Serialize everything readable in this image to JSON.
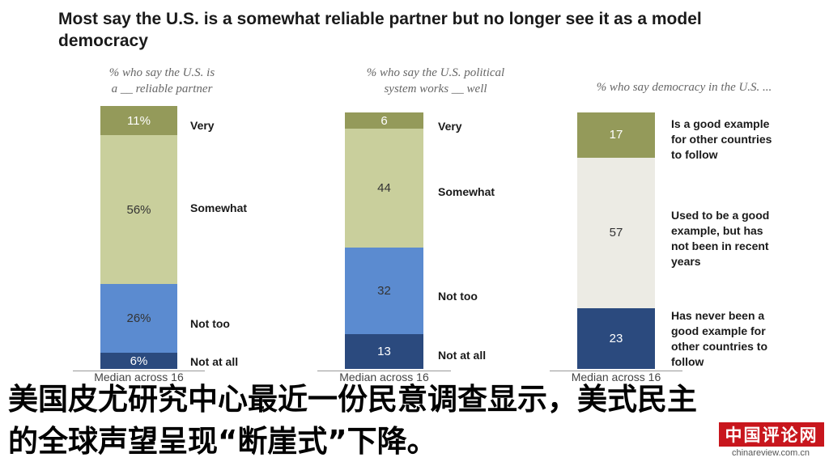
{
  "title": "Most say the U.S. is a somewhat reliable partner but no longer see it as a model democracy",
  "chart_data": [
    {
      "type": "bar",
      "stacked": true,
      "subtitle": "% who say the U.S. is\na __ reliable partner",
      "note": "Median across 16",
      "categories": [
        "Very",
        "Somewhat",
        "Not too",
        "Not at all"
      ],
      "values": [
        11,
        56,
        26,
        6
      ],
      "labels": [
        "11%",
        "56%",
        "26%",
        "6%"
      ],
      "colors": [
        "#949a5a",
        "#c9cf9c",
        "#5b8bd0",
        "#2b4a7e"
      ]
    },
    {
      "type": "bar",
      "stacked": true,
      "subtitle": "% who say the U.S. political\nsystem works __ well",
      "note": "Median across 16",
      "categories": [
        "Very",
        "Somewhat",
        "Not too",
        "Not at all"
      ],
      "values": [
        6,
        44,
        32,
        13
      ],
      "labels": [
        "6",
        "44",
        "32",
        "13"
      ],
      "colors": [
        "#949a5a",
        "#c9cf9c",
        "#5b8bd0",
        "#2b4a7e"
      ]
    },
    {
      "type": "bar",
      "stacked": true,
      "subtitle": "% who say democracy in the U.S. ...",
      "note": "Median across 16",
      "categories": [
        "Is a good example\nfor other countries\nto follow",
        "Used to be a good\nexample, but has\nnot been in recent\nyears",
        "Has never been a\ngood example for\nother countries to\nfollow"
      ],
      "values": [
        17,
        57,
        23
      ],
      "labels": [
        "17",
        "57",
        "23"
      ],
      "colors": [
        "#949a5a",
        "#ecebe4",
        "#2b4a7e"
      ]
    }
  ],
  "caption": "美国皮尤研究中心最近一份民意调查显示，美式民主\n的全球声望呈现“断崖式”下降。",
  "logo": {
    "text": "中国评论网",
    "url": "chinareview.com.cn"
  }
}
